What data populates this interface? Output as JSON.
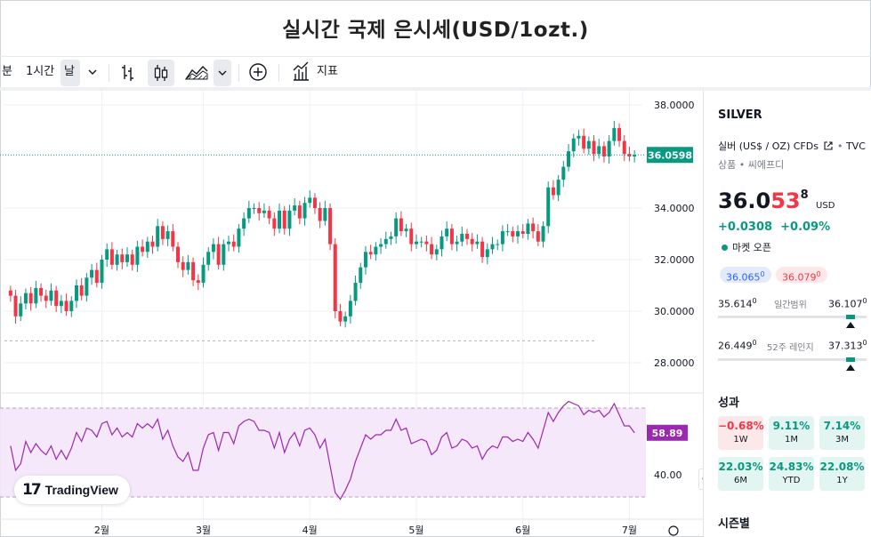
{
  "page": {
    "title": "실시간 국제 은시세(USD/1ozt.)"
  },
  "toolbar": {
    "minute_label": "분",
    "hour_label": "1시간",
    "day_label": "날",
    "indicators_label": "지표"
  },
  "chart": {
    "current_price_label": "36.0598",
    "rsi_value_label": "58.89",
    "watermark": "TradingView",
    "accent_up": "#089981",
    "accent_down": "#f23645",
    "rsi_color": "#9c27b0"
  },
  "chart_data": [
    {
      "type": "candlestick",
      "title": "",
      "x_ticks": [
        "2월",
        "3월",
        "4월",
        "5월",
        "6월",
        "7월"
      ],
      "y_ticks": [
        "38.0000",
        "34.0000",
        "32.0000",
        "30.0000",
        "28.0000"
      ],
      "ylim": [
        27.4,
        38.2
      ],
      "reference_line": 28.85,
      "last_price": 36.0598,
      "closes": [
        30.6,
        29.8,
        30.3,
        30.7,
        30.3,
        30.9,
        30.6,
        30.4,
        30.8,
        30.2,
        30.4,
        30.0,
        30.4,
        31.0,
        30.6,
        31.3,
        31.6,
        31.1,
        32.0,
        32.4,
        31.8,
        32.2,
        31.9,
        32.2,
        31.8,
        32.5,
        32.3,
        32.7,
        32.5,
        33.3,
        32.8,
        33.1,
        32.5,
        31.9,
        31.6,
        31.9,
        31.2,
        31.1,
        31.8,
        32.3,
        32.6,
        31.8,
        32.6,
        32.7,
        32.5,
        33.2,
        33.6,
        34.0,
        34.0,
        33.8,
        33.9,
        33.6,
        33.2,
        33.9,
        33.2,
        33.9,
        34.1,
        33.6,
        34.2,
        34.4,
        34.0,
        33.5,
        34.0,
        32.6,
        30.0,
        29.6,
        29.8,
        30.4,
        31.1,
        31.7,
        32.3,
        32.2,
        32.5,
        32.6,
        32.8,
        32.9,
        33.6,
        33.1,
        33.2,
        32.6,
        32.7,
        32.7,
        32.6,
        32.2,
        32.4,
        32.9,
        33.2,
        32.6,
        32.7,
        33.0,
        32.8,
        32.6,
        32.7,
        32.1,
        32.4,
        32.6,
        32.6,
        33.1,
        33.1,
        32.9,
        33.1,
        33.0,
        33.4,
        33.1,
        32.7,
        33.3,
        34.8,
        34.5,
        35.1,
        35.6,
        36.2,
        36.7,
        36.8,
        36.3,
        36.6,
        36.1,
        36.4,
        36.0,
        36.6,
        37.1,
        36.6,
        36.1,
        36.0,
        36.06
      ],
      "series_names": []
    },
    {
      "type": "line",
      "title": "",
      "y_ticks": [
        "40.00"
      ],
      "ylim": [
        28,
        78
      ],
      "overbought": 70,
      "oversold": 30,
      "values": [
        53,
        42,
        45,
        55,
        50,
        54,
        51,
        49,
        53,
        47,
        51,
        47,
        52,
        59,
        55,
        61,
        60,
        57,
        63,
        64,
        58,
        61,
        57,
        59,
        57,
        63,
        61,
        63,
        61,
        65,
        56,
        60,
        53,
        48,
        46,
        50,
        42,
        42,
        52,
        58,
        59,
        51,
        59,
        59,
        54,
        62,
        64,
        65,
        64,
        60,
        60,
        59,
        52,
        59,
        50,
        56,
        59,
        53,
        60,
        61,
        58,
        52,
        56,
        44,
        32,
        29,
        33,
        38,
        46,
        52,
        58,
        56,
        58,
        58,
        60,
        60,
        65,
        60,
        61,
        54,
        55,
        56,
        55,
        49,
        51,
        57,
        59,
        52,
        53,
        56,
        55,
        52,
        53,
        47,
        51,
        53,
        52,
        57,
        57,
        55,
        56,
        55,
        59,
        56,
        52,
        60,
        68,
        64,
        68,
        71,
        73,
        72,
        71,
        67,
        69,
        68,
        69,
        66,
        68,
        72,
        67,
        62,
        62,
        58.89
      ]
    }
  ],
  "sidebar": {
    "symbol": "SILVER",
    "description": "실버 (US$ / OZ) CFDs",
    "source": "TVC",
    "category": "상품",
    "type": "씨에프디",
    "price_main": "36.0",
    "price_hl": "53",
    "price_sup": "8",
    "currency": "USD",
    "change_abs": "+0.0308",
    "change_pct": "+0.09%",
    "market_status": "마켓 오픈",
    "bid": "36.065",
    "bid_sup": "0",
    "ask": "36.079",
    "ask_sup": "0",
    "day_low": "35.614",
    "day_low_sup": "0",
    "day_range_label": "일간범위",
    "day_high": "36.107",
    "day_high_sup": "0",
    "day_range_position": 0.89,
    "week52_low": "26.449",
    "week52_low_sup": "0",
    "week52_label": "52주 레인지",
    "week52_high": "37.313",
    "week52_high_sup": "0",
    "week52_position": 0.89,
    "performance_title": "성과",
    "performance": [
      {
        "value": "−0.68%",
        "label": "1W",
        "dir": "down"
      },
      {
        "value": "9.11%",
        "label": "1M",
        "dir": "up"
      },
      {
        "value": "7.14%",
        "label": "3M",
        "dir": "up"
      },
      {
        "value": "22.03%",
        "label": "6M",
        "dir": "up"
      },
      {
        "value": "24.83%",
        "label": "YTD",
        "dir": "up"
      },
      {
        "value": "22.08%",
        "label": "1Y",
        "dir": "up"
      }
    ],
    "seasonal_title": "시즌별"
  }
}
